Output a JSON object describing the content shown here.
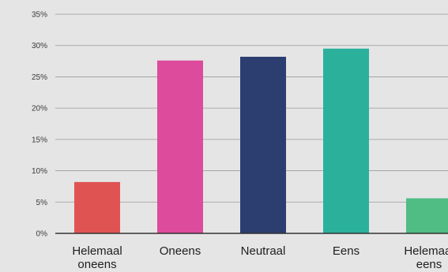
{
  "chart_data": {
    "type": "bar",
    "categories": [
      [
        "Helemaal",
        "oneens"
      ],
      [
        "Oneens"
      ],
      [
        "Neutraal"
      ],
      [
        "Eens"
      ],
      [
        "Helemaal",
        "eens"
      ]
    ],
    "values": [
      8.2,
      27.6,
      28.2,
      29.5,
      5.6
    ],
    "ylim": [
      0,
      35
    ],
    "yticks": [
      "0%",
      "5%",
      "10%",
      "15%",
      "20%",
      "25%",
      "30%",
      "35%"
    ],
    "colors": [
      "#e05353",
      "#dd4b9c",
      "#2c3d70",
      "#2bb09c",
      "#4fbd84"
    ],
    "grid": true
  }
}
